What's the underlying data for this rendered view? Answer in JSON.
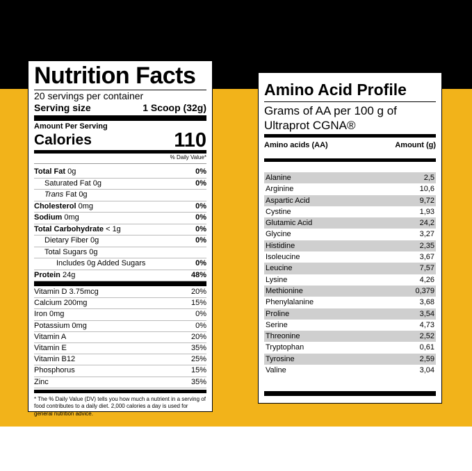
{
  "nutrition": {
    "title": "Nutrition Facts",
    "servings": "20 servings per container",
    "serving_size_label": "Serving size",
    "serving_size_value": "1 Scoop (32g)",
    "amount_per_serving": "Amount Per Serving",
    "calories_label": "Calories",
    "calories_value": "110",
    "dv_header": "% Daily Value*",
    "rows": [
      {
        "bold": "Total Fat",
        "rest": " 0g",
        "dv": "0%",
        "indent": 0
      },
      {
        "bold": "",
        "rest": "Saturated Fat 0g",
        "dv": "0%",
        "indent": 1
      },
      {
        "bold": "",
        "italic": "Trans",
        "rest": " Fat 0g",
        "dv": "",
        "indent": 1
      },
      {
        "bold": "Cholesterol",
        "rest": " 0mg",
        "dv": "0%",
        "indent": 0
      },
      {
        "bold": "Sodium",
        "rest": " 0mg",
        "dv": "0%",
        "indent": 0
      },
      {
        "bold": "Total Carbohydrate",
        "rest": " < 1g",
        "dv": "0%",
        "indent": 0
      },
      {
        "bold": "",
        "rest": "Dietary Fiber 0g",
        "dv": "0%",
        "indent": 1
      },
      {
        "bold": "",
        "rest": "Total Sugars 0g",
        "dv": "",
        "indent": 1
      },
      {
        "bold": "",
        "rest": "Includes 0g Added Sugars",
        "dv": "0%",
        "indent": 2
      },
      {
        "bold": "Protein",
        "rest": " 24g",
        "dv": "48%",
        "indent": 0
      }
    ],
    "vitamins": [
      {
        "name": "Vitamin D 3.75mcg",
        "dv": "20%"
      },
      {
        "name": "Calcium 200mg",
        "dv": "15%"
      },
      {
        "name": "Iron 0mg",
        "dv": "0%"
      },
      {
        "name": "Potassium 0mg",
        "dv": "0%"
      },
      {
        "name": "Vitamin A",
        "dv": "20%"
      },
      {
        "name": "Vitamin E",
        "dv": "35%"
      },
      {
        "name": "Vitamin B12",
        "dv": "25%"
      },
      {
        "name": "Phosphorus",
        "dv": "15%"
      },
      {
        "name": "Zinc",
        "dv": "35%"
      }
    ],
    "footnote": "* The % Daily Value (DV) tells you how much a nutrient in a serving of food contributes to a daily diet. 2,000 calories a day is used for general nutrition advice."
  },
  "amino": {
    "title": "Amino Acid Profile",
    "subtitle_line1": "Grams of AA per 100 g of",
    "subtitle_line2": "Ultraprot CGNA®",
    "col_name": "Amino acids (AA)",
    "col_amount": "Amount (g)",
    "rows": [
      {
        "name": "Alanine",
        "value": "2,5"
      },
      {
        "name": "Arginine",
        "value": "10,6"
      },
      {
        "name": "Aspartic Acid",
        "value": "9,72"
      },
      {
        "name": "Cystine",
        "value": "1,93"
      },
      {
        "name": "Glutamic Acid",
        "value": "24,2"
      },
      {
        "name": "Glycine",
        "value": "3,27"
      },
      {
        "name": "Histidine",
        "value": "2,35"
      },
      {
        "name": "Isoleucine",
        "value": "3,67"
      },
      {
        "name": "Leucine",
        "value": "7,57"
      },
      {
        "name": "Lysine",
        "value": "4,26"
      },
      {
        "name": "Methionine",
        "value": "0,379"
      },
      {
        "name": "Phenylalanine",
        "value": "3,68"
      },
      {
        "name": "Proline",
        "value": "3,54"
      },
      {
        "name": "Serine",
        "value": "4,73"
      },
      {
        "name": "Threonine",
        "value": "2,52"
      },
      {
        "name": "Tryptophan",
        "value": "0,61"
      },
      {
        "name": "Tyrosine",
        "value": "2,59"
      },
      {
        "name": "Valine",
        "value": "3,04"
      }
    ]
  },
  "colors": {
    "accent_band": "#f2b31a",
    "top_band": "#000000",
    "row_shade": "#cfcfcf"
  }
}
